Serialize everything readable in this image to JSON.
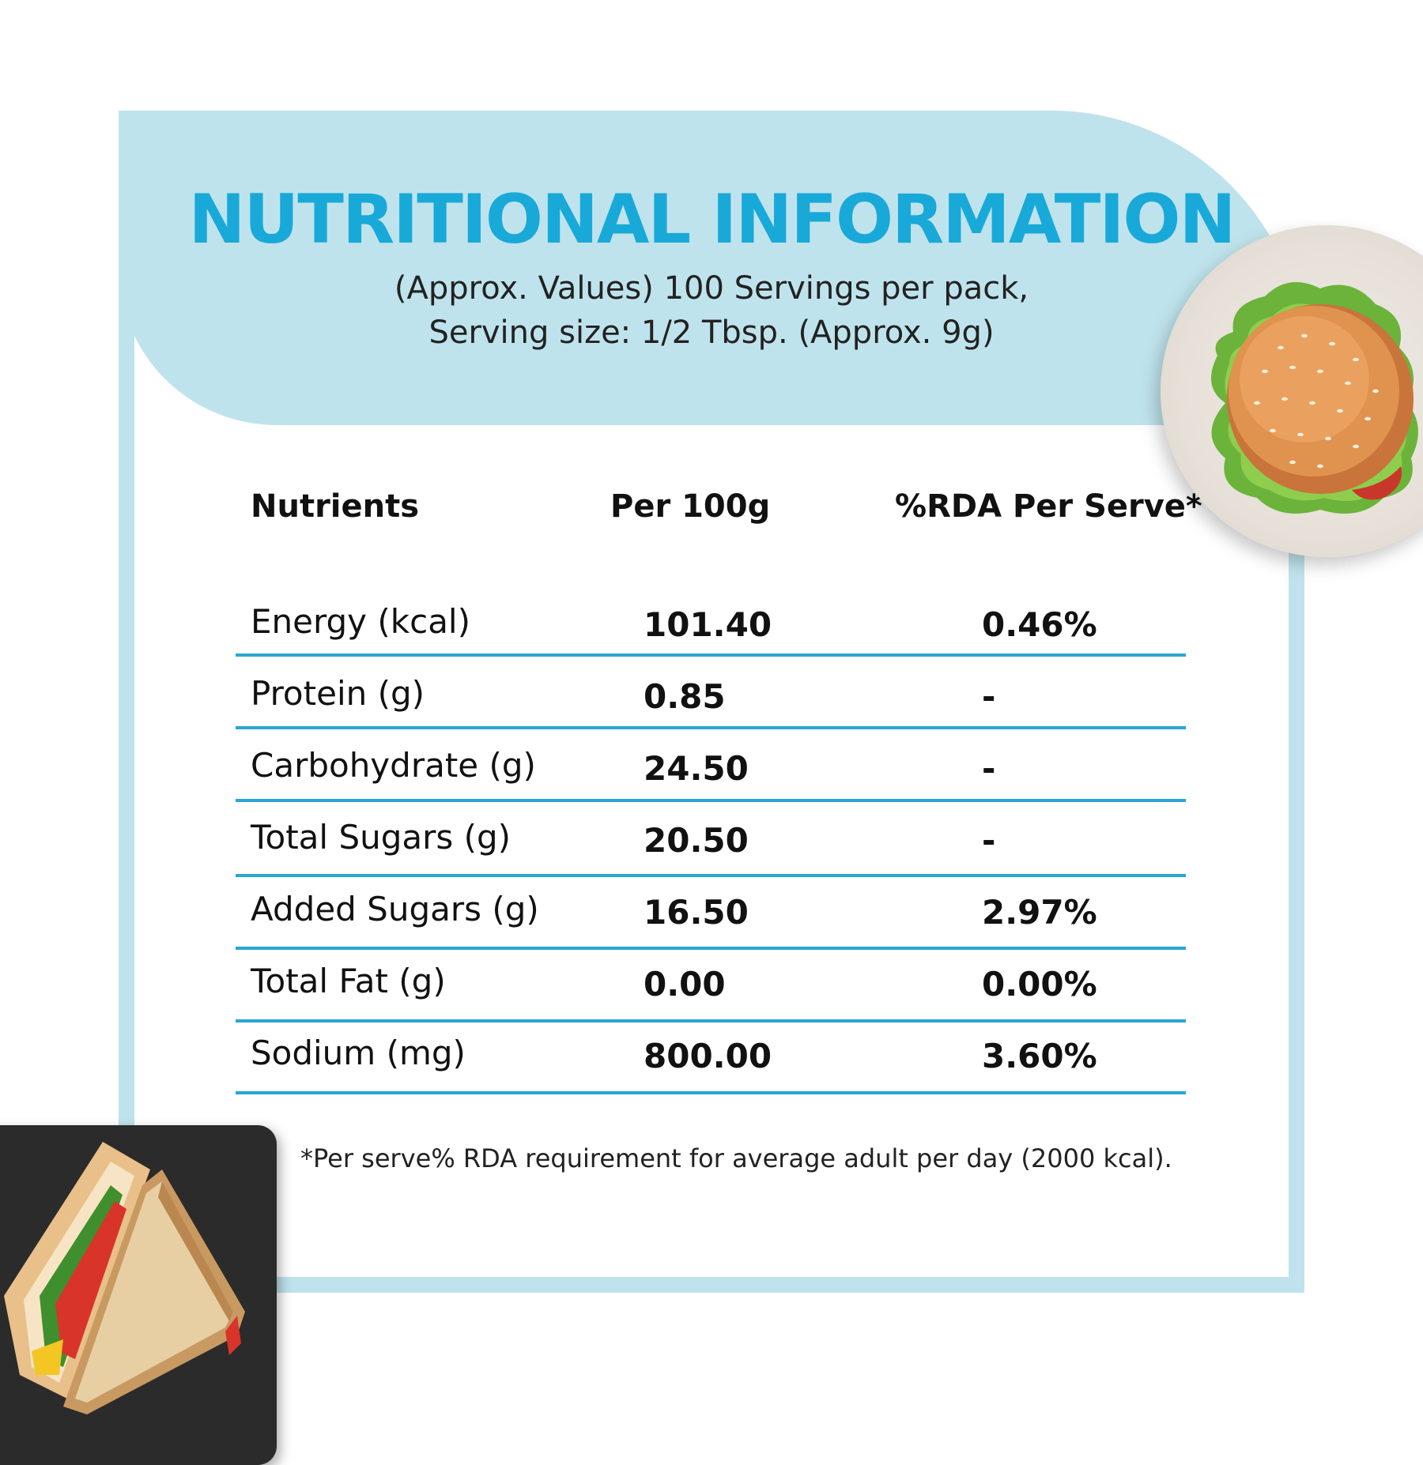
{
  "header": {
    "title": "NUTRITIONAL INFORMATION",
    "subtitle_line1": "(Approx. Values) 100 Servings per pack,",
    "subtitle_line2": "Serving size: 1/2 Tbsp. (Approx. 9g)"
  },
  "table": {
    "columns": [
      "Nutrients",
      "Per 100g",
      "%RDA Per Serve*"
    ],
    "rows": [
      {
        "nutrient": "Energy (kcal)",
        "per_100g": "101.40",
        "rda": "0.46%"
      },
      {
        "nutrient": "Protein (g)",
        "per_100g": "0.85",
        "rda": "-"
      },
      {
        "nutrient": "Carbohydrate (g)",
        "per_100g": "24.50",
        "rda": "-"
      },
      {
        "nutrient": "Total Sugars (g)",
        "per_100g": "20.50",
        "rda": "-"
      },
      {
        "nutrient": "Added Sugars (g)",
        "per_100g": "16.50",
        "rda": "2.97%"
      },
      {
        "nutrient": "Total Fat (g)",
        "per_100g": "0.00",
        "rda": "0.00%"
      },
      {
        "nutrient": "Sodium (mg)",
        "per_100g": "800.00",
        "rda": "3.60%"
      }
    ]
  },
  "footnote": "*Per serve% RDA requirement for average adult per day (2000 kcal).",
  "colors": {
    "accent": "#19a9d9",
    "panel": "#bfe3ec",
    "divider": "#2aa6d3"
  },
  "images": [
    "burger-on-plate",
    "sandwich-on-slate"
  ]
}
